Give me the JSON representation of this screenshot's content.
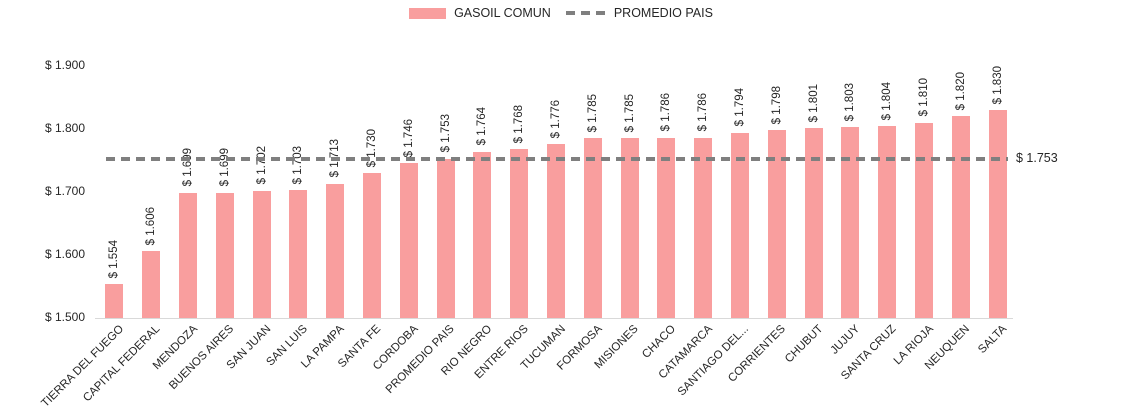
{
  "legend": {
    "series_bar": "GASOIL COMUN",
    "series_line": "PROMEDIO PAIS"
  },
  "colors": {
    "bar": "#F99E9E",
    "avg_line": "#7F7F7F",
    "text": "#262626",
    "axis_line": "#D9D9D9"
  },
  "chart_data": {
    "type": "bar",
    "title": "",
    "xlabel": "",
    "ylabel": "",
    "grid": false,
    "legend_position": "top-center",
    "ylim": [
      1500,
      1900
    ],
    "yticks": [
      {
        "value": 1900,
        "label": "$ 1.900"
      },
      {
        "value": 1800,
        "label": "$ 1.800"
      },
      {
        "value": 1700,
        "label": "$ 1.700"
      },
      {
        "value": 1600,
        "label": "$ 1.600"
      },
      {
        "value": 1500,
        "label": "$ 1.500"
      }
    ],
    "categories": [
      "TIERRA DEL FUEGO",
      "CAPITAL FEDERAL",
      "MENDOZA",
      "BUENOS AIRES",
      "SAN JUAN",
      "SAN LUIS",
      "LA PAMPA",
      "SANTA FE",
      "CORDOBA",
      "PROMEDIO PAIS",
      "RIO NEGRO",
      "ENTRE RIOS",
      "TUCUMAN",
      "FORMOSA",
      "MISIONES",
      "CHACO",
      "CATAMARCA",
      "SANTIAGO DEL...",
      "CORRIENTES",
      "CHUBUT",
      "JUJUY",
      "SANTA CRUZ",
      "LA RIOJA",
      "NEUQUEN",
      "SALTA"
    ],
    "values": [
      1554,
      1606,
      1699,
      1699,
      1702,
      1703,
      1713,
      1730,
      1746,
      1753,
      1764,
      1768,
      1776,
      1785,
      1785,
      1786,
      1786,
      1794,
      1798,
      1801,
      1803,
      1804,
      1810,
      1820,
      1830
    ],
    "bar_labels": [
      "$ 1.554",
      "$ 1.606",
      "$ 1.699",
      "$ 1.699",
      "$ 1.702",
      "$ 1.703",
      "$ 1.713",
      "$ 1.730",
      "$ 1.746",
      "$ 1.753",
      "$ 1.764",
      "$ 1.768",
      "$ 1.776",
      "$ 1.785",
      "$ 1.785",
      "$ 1.786",
      "$ 1.786",
      "$ 1.794",
      "$ 1.798",
      "$ 1.801",
      "$ 1.803",
      "$ 1.804",
      "$ 1.810",
      "$ 1.820",
      "$ 1.830"
    ],
    "average_line": {
      "value": 1753,
      "label": "$ 1.753",
      "series": "PROMEDIO PAIS"
    }
  }
}
